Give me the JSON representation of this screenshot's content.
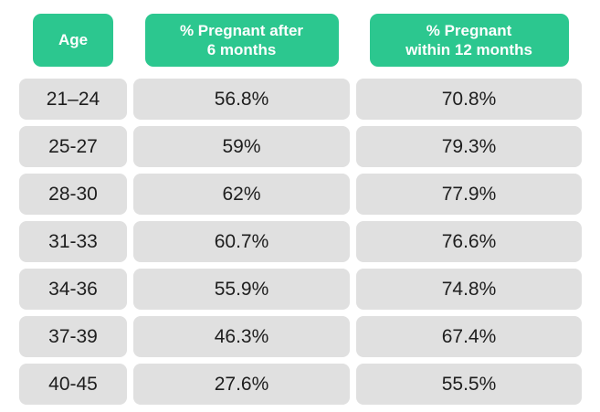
{
  "chart_data": {
    "type": "table",
    "columns": [
      "Age",
      "% Pregnant after 6 months",
      "% Pregnant within 12 months"
    ],
    "rows": [
      [
        "21–24",
        "56.8%",
        "70.8%"
      ],
      [
        "25-27",
        "59%",
        "79.3%"
      ],
      [
        "28-30",
        "62%",
        "77.9%"
      ],
      [
        "31-33",
        "60.7%",
        "76.6%"
      ],
      [
        "34-36",
        "55.9%",
        "74.8%"
      ],
      [
        "37-39",
        "46.3%",
        "67.4%"
      ],
      [
        "40-45",
        "27.6%",
        "55.5%"
      ]
    ]
  },
  "headers": [
    {
      "lines": [
        "Age"
      ]
    },
    {
      "lines": [
        "% Pregnant after",
        "6 months"
      ]
    },
    {
      "lines": [
        "% Pregnant",
        "within 12 months"
      ]
    }
  ],
  "colors": {
    "header_bg": "#2CC78F",
    "header_text": "#FFFFFF",
    "cell_bg": "#E0E0E0",
    "cell_text": "#1E1E1E",
    "page_bg": "#FFFFFF"
  }
}
